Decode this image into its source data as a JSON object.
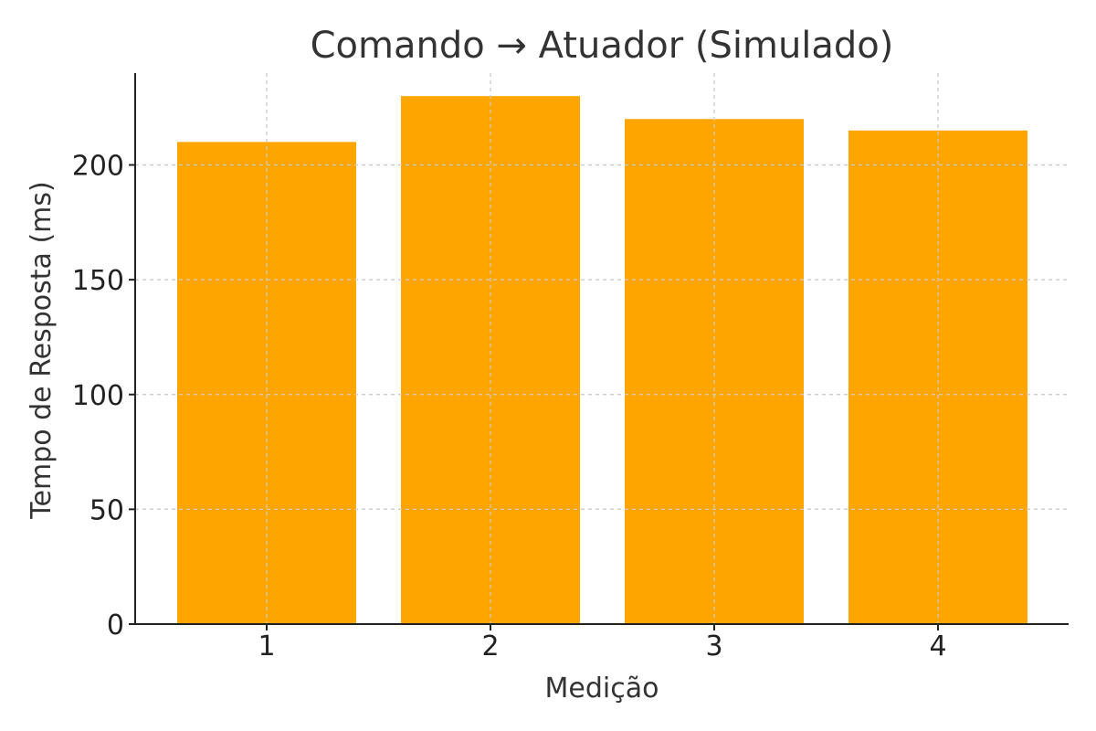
{
  "chart_data": {
    "type": "bar",
    "title": "Comando → Atuador (Simulado)",
    "xlabel": "Medição",
    "ylabel": "Tempo de Resposta (ms)",
    "categories": [
      "1",
      "2",
      "3",
      "4"
    ],
    "values": [
      210,
      230,
      220,
      215
    ],
    "ylim": [
      0,
      240
    ],
    "yticks": [
      0,
      50,
      100,
      150,
      200
    ],
    "grid": true,
    "legend": "none",
    "colors": {
      "bar": "#FFA500",
      "grid": "#cccccc",
      "axis": "#222222",
      "text": "#333333"
    }
  }
}
